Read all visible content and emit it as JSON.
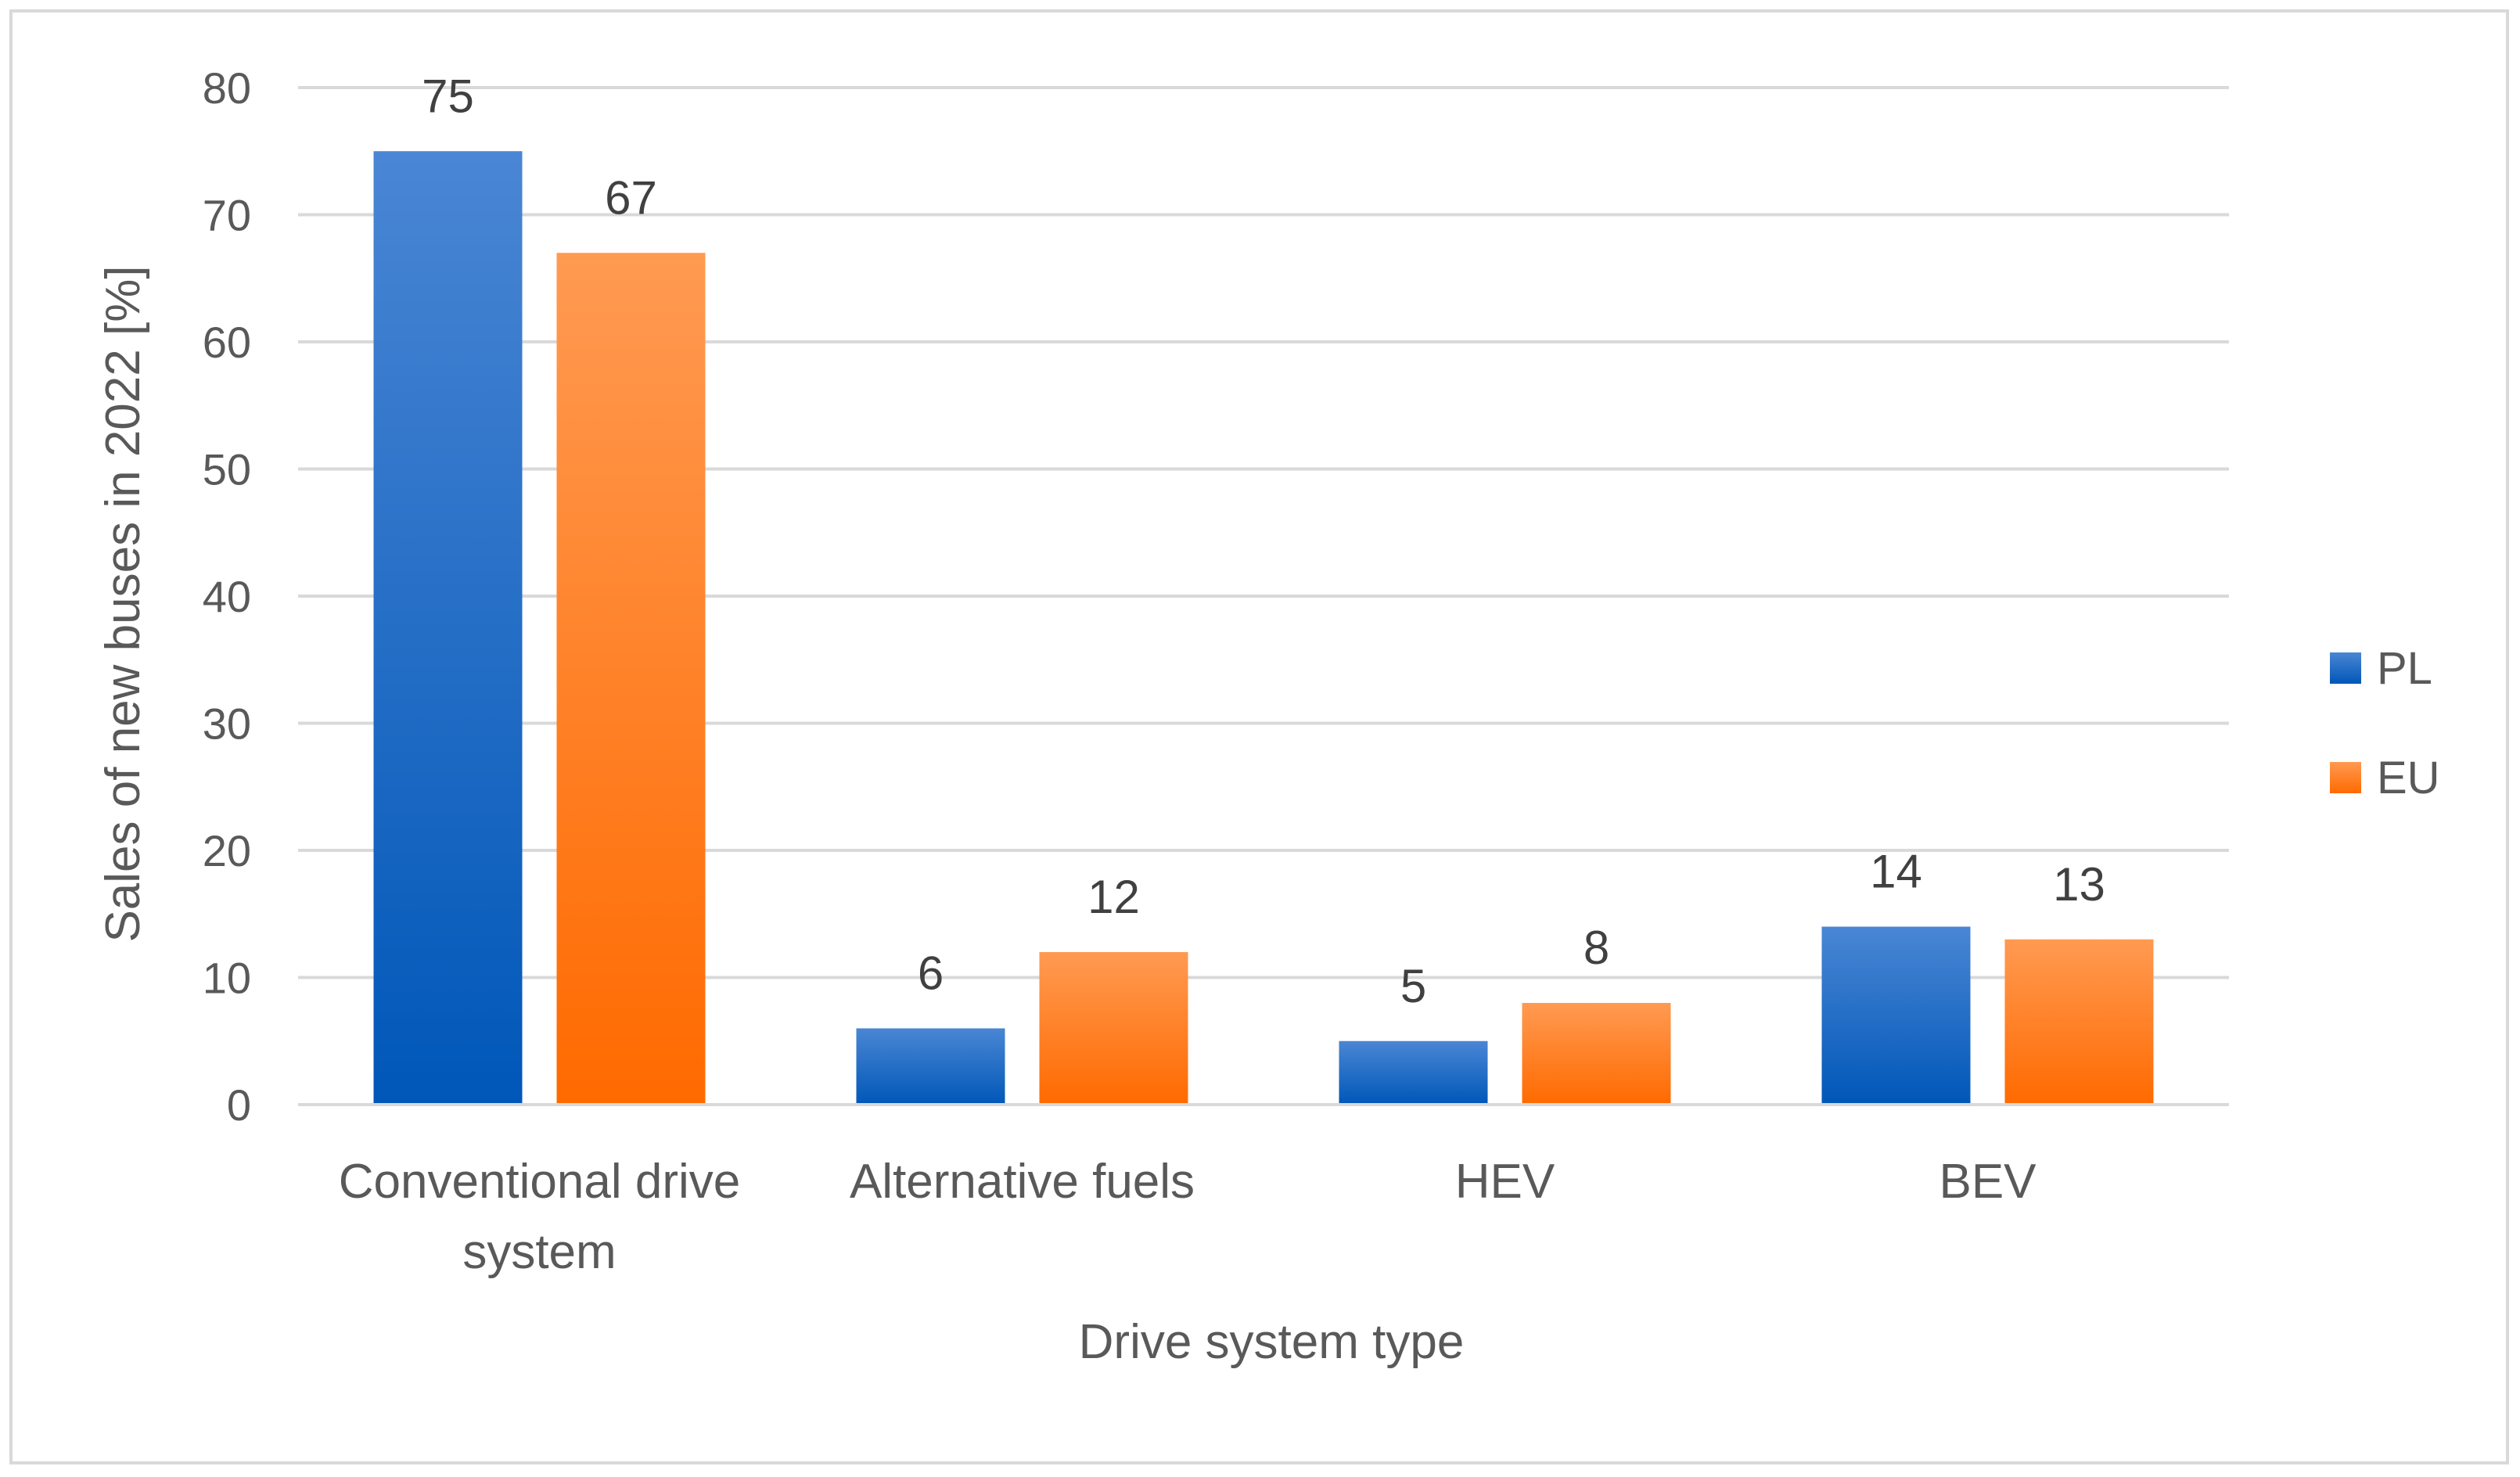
{
  "chart_data": {
    "type": "bar",
    "title": "",
    "xlabel": "Drive system type",
    "ylabel": "Sales of new buses in 2022 [%]",
    "ylim": [
      0,
      80
    ],
    "yticks": [
      0,
      10,
      20,
      30,
      40,
      50,
      60,
      70,
      80
    ],
    "grid": true,
    "legend_position": "right",
    "categories": [
      [
        "Conventional drive",
        "system"
      ],
      [
        "Alternative fuels"
      ],
      [
        "HEV"
      ],
      [
        "BEV"
      ]
    ],
    "series": [
      {
        "name": "PL",
        "values": [
          75,
          6,
          5,
          14
        ],
        "color_top": "#4a86d4",
        "color_bottom": "#0057b8"
      },
      {
        "name": "EU",
        "values": [
          67,
          12,
          8,
          13
        ],
        "color_top": "#ff9a52",
        "color_bottom": "#ff6a00"
      }
    ]
  }
}
